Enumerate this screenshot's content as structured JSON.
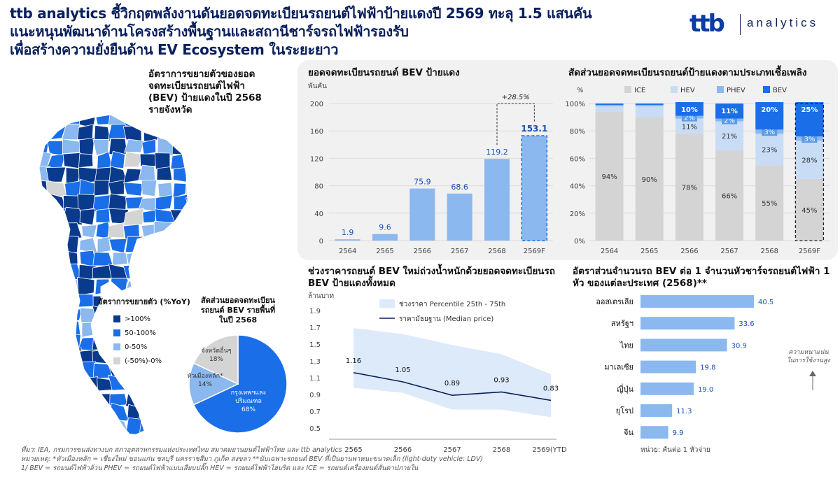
{
  "header": {
    "title_lines": [
      "ttb analytics ชี้วิกฤตพลังงานดันยอดจดทะเบียนรถยนต์ไฟฟ้าป้ายแดงปี 2569 ทะลุ 1.5 แสนคัน",
      "แนะหนุนพัฒนาด้านโครงสร้างพื้นฐานและสถานีชาร์จรถไฟฟ้ารองรับ",
      "เพื่อสร้างความยั่งยืนด้าน EV Ecosystem ในระยะยาว"
    ],
    "logo_ttb": "ttb",
    "logo_analytics": "analytics"
  },
  "colors": {
    "navy": "#0a3a8c",
    "blue": "#1a6ee8",
    "mid": "#8ab8ef",
    "light": "#c8dcf5",
    "grey": "#d4d4d4",
    "accent": "#0a1f5c"
  },
  "map": {
    "title_lines": [
      "อัตราการขยายตัวของยอด",
      "จดทะเบียนรถยนต์ไฟฟ้า",
      "(BEV) ป้ายแดงในปี 2568",
      "รายจังหวัด"
    ],
    "legend_title": "อัตราการขยายตัว (%YoY)",
    "legend": [
      {
        "label": ">100%",
        "color": "#0a3a8c"
      },
      {
        "label": "50-100%",
        "color": "#1a6ee8"
      },
      {
        "label": "0-50%",
        "color": "#8ab8ef"
      },
      {
        "label": "(-50%)-0%",
        "color": "#d4d4d4"
      }
    ]
  },
  "pie": {
    "title_lines": [
      "สัดส่วนยอดจดทะเบียน",
      "รถยนต์ BEV รายพื้นที่",
      "ในปี 2568"
    ],
    "slices": [
      {
        "label_lines": [
          "กรุงเทพฯและ",
          "ปริมณฑล"
        ],
        "value": 68,
        "value_label": "68%",
        "color": "#1a6ee8"
      },
      {
        "label_lines": [
          "หัวเมืองหลัก*"
        ],
        "value": 14,
        "value_label": "14%",
        "color": "#8ab8ef"
      },
      {
        "label_lines": [
          "จังหวัดอื่นๆ"
        ],
        "value": 18,
        "value_label": "18%",
        "color": "#d4d4d4"
      }
    ]
  },
  "chart_data": [
    {
      "type": "bar",
      "title": "ยอดจดทะเบียนรถยนต์ BEV ป้ายแดง",
      "ylabel": "พันคัน",
      "categories": [
        "2564",
        "2565",
        "2566",
        "2567",
        "2568",
        "2569F"
      ],
      "values": [
        1.9,
        9.6,
        75.9,
        68.6,
        119.2,
        153.1
      ],
      "value_labels": [
        "1.9",
        "9.6",
        "75.9",
        "68.6",
        "119.2",
        "153.1"
      ],
      "yticks": [
        0,
        40,
        80,
        120,
        160,
        200
      ],
      "ylim": [
        0,
        200
      ],
      "annotation": "+28.5%",
      "forecast_index": 5
    },
    {
      "type": "bar",
      "stacked": true,
      "title": "สัดส่วนยอดจดทะเบียนรถยนต์ป้ายแดงตามประเภทเชื้อเพลิง",
      "ylabel": "%",
      "categories": [
        "2564",
        "2565",
        "2566",
        "2567",
        "2568",
        "2569F"
      ],
      "yticks": [
        "0%",
        "20%",
        "40%",
        "60%",
        "80%",
        "100%"
      ],
      "series": [
        {
          "name": "ICE",
          "color": "#d4d4d4",
          "values": [
            94,
            90,
            78,
            66,
            55,
            45
          ],
          "labels": [
            "94%",
            "90%",
            "78%",
            "66%",
            "55%",
            "45%"
          ]
        },
        {
          "name": "HEV",
          "color": "#c8dcf5",
          "values": [
            4,
            8,
            11,
            21,
            23,
            28
          ],
          "labels": [
            "",
            "",
            "11%",
            "21%",
            "23%",
            "28%"
          ]
        },
        {
          "name": "PHEV",
          "color": "#8ab8ef",
          "values": [
            1,
            1,
            2,
            2,
            3,
            3
          ],
          "labels": [
            "",
            "",
            "2%",
            "2%",
            "3%",
            "3%"
          ]
        },
        {
          "name": "BEV",
          "color": "#1a6ee8",
          "values": [
            1,
            1,
            10,
            11,
            20,
            25
          ],
          "labels": [
            "",
            "",
            "10%",
            "11%",
            "20%",
            "25%"
          ]
        }
      ],
      "forecast_index": 5
    },
    {
      "type": "line",
      "title": "ช่วงราคารถยนต์ BEV ใหม่ถ่วงน้ำหนักด้วยยอดจดทะเบียนรถ BEV ป้ายแดงทั้งหมด",
      "ylabel": "ล้านบาท",
      "x": [
        "2565",
        "2566",
        "2567",
        "2568",
        "2569(YTD)"
      ],
      "yticks": [
        "0.5",
        "0.7",
        "0.9",
        "1.1",
        "1.3",
        "1.5",
        "1.7",
        "1.9"
      ],
      "ylim": [
        0.5,
        1.9
      ],
      "band": {
        "name": "ช่วงราคา Percentile 25th - 75th",
        "low": [
          0.98,
          0.92,
          0.72,
          0.72,
          0.63
        ],
        "high": [
          1.69,
          1.62,
          1.49,
          1.38,
          1.14
        ]
      },
      "series": [
        {
          "name": "ราคามัธยฐาน (Median price)",
          "values": [
            1.16,
            1.05,
            0.89,
            0.93,
            0.83
          ],
          "labels": [
            "1.16",
            "1.05",
            "0.89",
            "0.93",
            "0.83"
          ]
        }
      ]
    },
    {
      "type": "bar",
      "orientation": "horizontal",
      "title": "อัตราส่วนจำนวนรถ BEV ต่อ 1 จำนวนหัวชาร์จรถยนต์ไฟฟ้า 1 หัว ของแต่ละประเทศ (2568)**",
      "categories": [
        "ออสเตรเลีย",
        "สหรัฐฯ",
        "ไทย",
        "มาเลเซีย",
        "ญี่ปุ่น",
        "ยุโรป",
        "จีน"
      ],
      "values": [
        40.5,
        33.6,
        30.9,
        19.8,
        19.0,
        11.3,
        9.9
      ],
      "value_labels": [
        "40.5",
        "33.6",
        "30.9",
        "19.8",
        "19.0",
        "11.3",
        "9.9"
      ],
      "unit_note": "หน่วย: คันต่อ 1 หัวจ่าย",
      "side_note_lines": [
        "ความหนาแน่น",
        "ในการใช้งานสูง"
      ]
    }
  ],
  "footnotes": [
    "ที่มา: IEA, กรมการขนส่งทางบก สภาอุตสาหกรรมแห่งประเทศไทย สมาคมยานยนต์ไฟฟ้าไทย และ ttb analytics",
    "หมายเหตุ: *หัวเมืองหลัก = เชียงใหม่ ขอนแก่น ชลบุรี นครราชสีมา ภูเก็ต สงขลา **นับเฉพาะรถยนต์ BEV ที่เป็นยานพาหนะขนาดเล็ก (light-duty vehicle: LDV)",
    "1/ BEV = รถยนต์ไฟฟ้าล้วน PHEV = รถยนต์ไฟฟ้าแบบเสียบปลั๊ก HEV = รถยนต์ไฟฟ้าไฮบริด และ ICE = รถยนต์เครื่องยนต์สันดาปภายใน"
  ]
}
